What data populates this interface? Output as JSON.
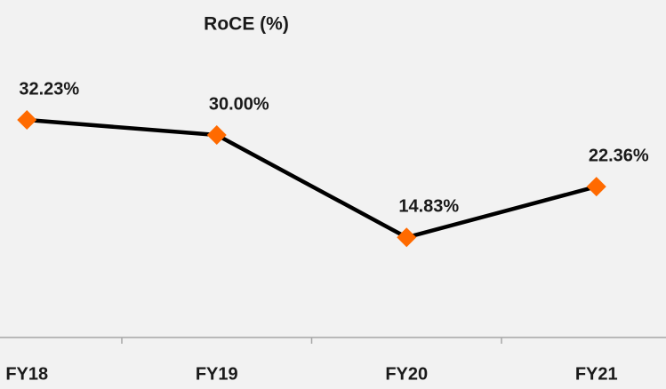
{
  "chart_data": {
    "type": "line",
    "title": "RoCE (%)",
    "categories": [
      "FY18",
      "FY19",
      "FY20",
      "FY21"
    ],
    "series": [
      {
        "name": "RoCE",
        "color": "#ff6a00",
        "line_color": "#000000",
        "values": [
          32.23,
          30.0,
          14.83,
          22.36
        ],
        "value_labels": [
          "32.23%",
          "30.00%",
          "14.83%",
          "22.36%"
        ]
      }
    ],
    "ylim": [
      0,
      50
    ]
  }
}
